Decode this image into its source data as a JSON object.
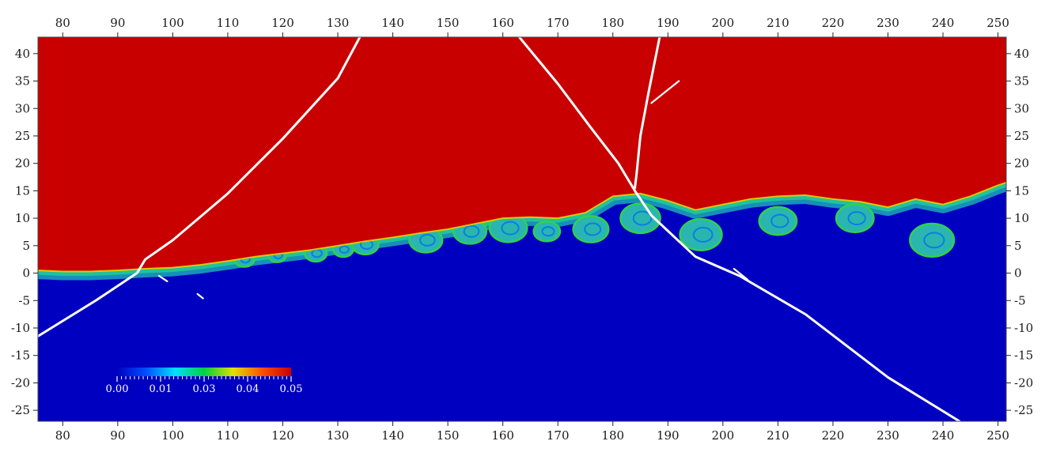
{
  "chart_data": {
    "type": "heatmap",
    "title": "",
    "xlabel": "",
    "ylabel": "",
    "xlim": [
      75.5,
      251.5
    ],
    "ylim": [
      -27,
      43
    ],
    "x_ticks": [
      80,
      90,
      100,
      110,
      120,
      130,
      140,
      150,
      160,
      170,
      180,
      190,
      200,
      210,
      220,
      230,
      240,
      250
    ],
    "y_ticks": [
      -25,
      -20,
      -15,
      -10,
      -5,
      0,
      5,
      10,
      15,
      20,
      25,
      30,
      35,
      40
    ],
    "x_tick_labels": [
      "80",
      "90",
      "100",
      "110",
      "120",
      "130",
      "140",
      "150",
      "160",
      "170",
      "180",
      "190",
      "200",
      "210",
      "220",
      "230",
      "240",
      "250"
    ],
    "y_tick_labels": [
      "-25",
      "-20",
      "-15",
      "-10",
      "-5",
      "0",
      "5",
      "10",
      "15",
      "20",
      "25",
      "30",
      "35",
      "40"
    ],
    "grid": false,
    "colormap": {
      "name": "jet",
      "range": [
        0.0,
        0.05
      ],
      "tick_values": [
        0.0,
        0.0125,
        0.025,
        0.0375,
        0.05
      ],
      "tick_labels": [
        "0.00",
        "0.01",
        "0.03",
        "0.04",
        "0.05"
      ],
      "colors": [
        "#0000c0",
        "#0050ff",
        "#00e0ff",
        "#00d040",
        "#e0e000",
        "#ff5000",
        "#c80000"
      ],
      "placement": "lower-left-inside"
    },
    "fields": {
      "upper_value": 0.05,
      "lower_value": 0.0,
      "upper_color": "#c80000",
      "lower_color": "#0000c0"
    },
    "interface": {
      "x": [
        75.5,
        80,
        85,
        90,
        95,
        100,
        105,
        110,
        115,
        120,
        125,
        130,
        135,
        140,
        145,
        150,
        155,
        160,
        165,
        170,
        175,
        180,
        185,
        190,
        195,
        200,
        205,
        210,
        215,
        220,
        225,
        230,
        235,
        240,
        245,
        250,
        251.5
      ],
      "y": [
        0.5,
        0.3,
        0.3,
        0.5,
        0.8,
        1.0,
        1.5,
        2.2,
        3.0,
        3.6,
        4.2,
        5.0,
        5.8,
        6.5,
        7.3,
        8.0,
        9.0,
        10.0,
        10.2,
        10.0,
        11.0,
        14.0,
        14.5,
        13.2,
        11.5,
        12.5,
        13.5,
        14.0,
        14.2,
        13.5,
        13.0,
        12.0,
        13.5,
        12.5,
        14.0,
        16.0,
        16.5
      ]
    },
    "vortices": [
      {
        "x": 113,
        "y": 2.5,
        "r": 1.8
      },
      {
        "x": 119,
        "y": 3.2,
        "r": 1.6
      },
      {
        "x": 126,
        "y": 3.6,
        "r": 2.0
      },
      {
        "x": 131,
        "y": 4.3,
        "r": 1.8
      },
      {
        "x": 135,
        "y": 5.2,
        "r": 2.4
      },
      {
        "x": 146,
        "y": 6.0,
        "r": 3.0
      },
      {
        "x": 154,
        "y": 7.6,
        "r": 3.0
      },
      {
        "x": 161,
        "y": 8.2,
        "r": 3.4
      },
      {
        "x": 168,
        "y": 7.6,
        "r": 2.4
      },
      {
        "x": 176,
        "y": 8.0,
        "r": 3.2
      },
      {
        "x": 185,
        "y": 10.0,
        "r": 3.6
      },
      {
        "x": 196,
        "y": 7.0,
        "r": 3.8
      },
      {
        "x": 210,
        "y": 9.5,
        "r": 3.4
      },
      {
        "x": 224,
        "y": 10.0,
        "r": 3.4
      },
      {
        "x": 238,
        "y": 6.0,
        "r": 4.0
      }
    ],
    "contour_lines": [
      {
        "x": [
          75.5,
          86,
          93.5,
          95,
          100,
          110,
          120,
          130,
          134
        ],
        "y": [
          -11.5,
          -5,
          0,
          2.5,
          6.0,
          14.5,
          24.5,
          35.5,
          43
        ]
      },
      {
        "x": [
          163,
          170,
          176,
          181,
          184,
          187,
          195,
          203,
          215,
          230,
          243
        ],
        "y": [
          43,
          34.5,
          26.5,
          20,
          15,
          10.5,
          3.0,
          -0.5,
          -7.5,
          -19,
          -27
        ]
      },
      {
        "x": [
          188.5,
          186.5,
          185,
          184.3,
          184
        ],
        "y": [
          43,
          33,
          25,
          18,
          15.5
        ]
      },
      {
        "x": [
          187,
          192
        ],
        "y": [
          31,
          35
        ]
      },
      {
        "x": [
          202,
          204.5
        ],
        "y": [
          0.8,
          -1.2
        ]
      },
      {
        "x": [
          97.5,
          99
        ],
        "y": [
          -0.5,
          -1.5
        ]
      },
      {
        "x": [
          104.5,
          105.5
        ],
        "y": [
          -3.8,
          -4.6
        ]
      }
    ]
  }
}
